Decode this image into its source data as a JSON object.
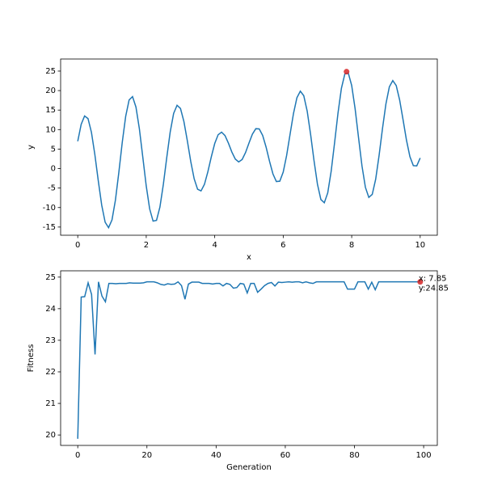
{
  "chart_data": [
    {
      "type": "line",
      "xlabel": "x",
      "ylabel": "y",
      "x": [
        0,
        0.1,
        0.2,
        0.3,
        0.4,
        0.5,
        0.6,
        0.7,
        0.8,
        0.9,
        1,
        1.1,
        1.2,
        1.3,
        1.4,
        1.5,
        1.6,
        1.7,
        1.8,
        1.9,
        2,
        2.1,
        2.2,
        2.3,
        2.4,
        2.5,
        2.6,
        2.7,
        2.8,
        2.9,
        3,
        3.1,
        3.2,
        3.3,
        3.4,
        3.5,
        3.6,
        3.7,
        3.8,
        3.9,
        4,
        4.1,
        4.2,
        4.3,
        4.4,
        4.5,
        4.6,
        4.7,
        4.8,
        4.9,
        5,
        5.1,
        5.2,
        5.3,
        5.4,
        5.5,
        5.6,
        5.7,
        5.8,
        5.9,
        6,
        6.1,
        6.2,
        6.3,
        6.4,
        6.5,
        6.6,
        6.7,
        6.8,
        6.9,
        7,
        7.1,
        7.2,
        7.3,
        7.4,
        7.5,
        7.6,
        7.7,
        7.8,
        7.9,
        8,
        8.1,
        8.2,
        8.3,
        8.4,
        8.5,
        8.6,
        8.7,
        8.8,
        8.9,
        9,
        9.1,
        9.2,
        9.3,
        9.4,
        9.5,
        9.6,
        9.7,
        9.8,
        9.9,
        10
      ],
      "series": [
        {
          "color": "#1f77b4",
          "values": [
            7.0,
            11.34,
            13.49,
            12.81,
            9.29,
            3.57,
            -3.15,
            -9.4,
            -13.76,
            -15.15,
            -13.16,
            -8.11,
            -0.98,
            6.73,
            13.4,
            17.6,
            18.45,
            15.77,
            10.18,
            2.91,
            -4.46,
            -10.34,
            -13.48,
            -13.28,
            -9.86,
            -4.04,
            2.88,
            9.38,
            14.13,
            16.23,
            15.41,
            12.07,
            7.13,
            1.82,
            -2.63,
            -5.3,
            -5.73,
            -4.04,
            -0.82,
            3.0,
            6.43,
            8.68,
            9.34,
            8.47,
            6.52,
            4.25,
            2.44,
            1.71,
            2.32,
            4.11,
            6.53,
            8.83,
            10.23,
            10.17,
            8.49,
            5.5,
            1.89,
            -1.37,
            -3.32,
            -3.24,
            -0.91,
            3.37,
            8.78,
            14.12,
            18.16,
            19.86,
            18.69,
            14.74,
            8.76,
            2.01,
            -4.02,
            -7.94,
            -8.77,
            -6.23,
            -0.73,
            6.6,
            14.25,
            20.6,
            24.28,
            24.52,
            21.29,
            15.32,
            7.92,
            0.69,
            -4.8,
            -7.4,
            -6.63,
            -2.73,
            3.37,
            10.32,
            16.61,
            20.97,
            22.57,
            21.29,
            17.6,
            12.51,
            7.27,
            3.05,
            0.75,
            0.69,
            2.71
          ]
        }
      ],
      "points": [
        {
          "x": 7.85,
          "y": 24.85,
          "color": "#d62728"
        }
      ],
      "xlim": [
        -0.5,
        10.5
      ],
      "xticks": [
        0,
        2,
        4,
        6,
        8,
        10
      ],
      "ylim": [
        -17.1,
        28.1
      ],
      "yticks": [
        -15,
        -10,
        -5,
        0,
        5,
        10,
        15,
        20,
        25
      ]
    },
    {
      "type": "line",
      "xlabel": "Generation",
      "ylabel": "Fitness",
      "x": [
        0,
        1,
        2,
        3,
        4,
        5,
        6,
        7,
        8,
        9,
        10,
        11,
        12,
        13,
        14,
        15,
        16,
        17,
        18,
        19,
        20,
        21,
        22,
        23,
        24,
        25,
        26,
        27,
        28,
        29,
        30,
        31,
        32,
        33,
        34,
        35,
        36,
        37,
        38,
        39,
        40,
        41,
        42,
        43,
        44,
        45,
        46,
        47,
        48,
        49,
        50,
        51,
        52,
        53,
        54,
        55,
        56,
        57,
        58,
        59,
        60,
        61,
        62,
        63,
        64,
        65,
        66,
        67,
        68,
        69,
        70,
        71,
        72,
        73,
        74,
        75,
        76,
        77,
        78,
        79,
        80,
        81,
        82,
        83,
        84,
        85,
        86,
        87,
        88,
        89,
        90,
        91,
        92,
        93,
        94,
        95,
        96,
        97,
        98,
        99
      ],
      "series": [
        {
          "color": "#1f77b4",
          "values": [
            19.88,
            24.37,
            24.38,
            24.82,
            24.45,
            22.55,
            24.85,
            24.4,
            24.22,
            24.8,
            24.8,
            24.79,
            24.8,
            24.8,
            24.8,
            24.82,
            24.81,
            24.81,
            24.81,
            24.82,
            24.85,
            24.85,
            24.85,
            24.82,
            24.77,
            24.75,
            24.79,
            24.77,
            24.78,
            24.85,
            24.73,
            24.3,
            24.78,
            24.84,
            24.84,
            24.84,
            24.8,
            24.8,
            24.8,
            24.78,
            24.8,
            24.8,
            24.72,
            24.8,
            24.77,
            24.65,
            24.67,
            24.8,
            24.78,
            24.5,
            24.8,
            24.8,
            24.52,
            24.62,
            24.73,
            24.8,
            24.83,
            24.72,
            24.84,
            24.83,
            24.84,
            24.85,
            24.84,
            24.85,
            24.85,
            24.82,
            24.85,
            24.82,
            24.8,
            24.85,
            24.85,
            24.85,
            24.85,
            24.85,
            24.85,
            24.85,
            24.85,
            24.85,
            24.62,
            24.62,
            24.62,
            24.85,
            24.85,
            24.85,
            24.62,
            24.84,
            24.6,
            24.85,
            24.85,
            24.85,
            24.85,
            24.85,
            24.85,
            24.85,
            24.85,
            24.85,
            24.85,
            24.85,
            24.85,
            24.85
          ]
        }
      ],
      "points": [
        {
          "x": 99,
          "y": 24.85,
          "color": "#d62728",
          "annotation": [
            "x: 7.85",
            "y:24.85"
          ]
        }
      ],
      "xlim": [
        -4.95,
        103.95
      ],
      "xticks": [
        0,
        20,
        40,
        60,
        80,
        100
      ],
      "ylim": [
        19.67,
        25.2
      ],
      "yticks": [
        20,
        21,
        22,
        23,
        24,
        25
      ]
    }
  ]
}
